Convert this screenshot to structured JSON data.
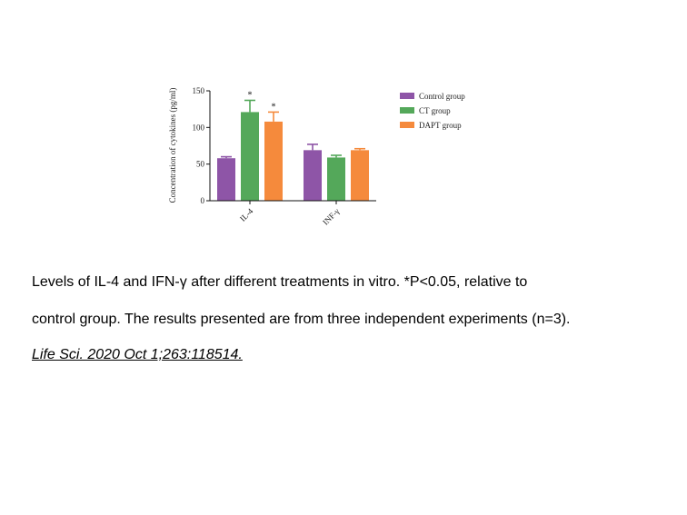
{
  "chart_data": {
    "type": "bar",
    "ylabel": "Concentration of cytokines (pg/ml)",
    "xlabel": "",
    "ylim": [
      0,
      150
    ],
    "yticks": [
      0,
      50,
      100,
      150
    ],
    "categories": [
      "IL-4",
      "INF-γ"
    ],
    "series": [
      {
        "name": "Control group",
        "color": "#8e55a7",
        "values": [
          58,
          69
        ],
        "errors": [
          2,
          8
        ],
        "significance": [
          "",
          ""
        ]
      },
      {
        "name": "CT group",
        "color": "#54a85a",
        "values": [
          121,
          59
        ],
        "errors": [
          16,
          3
        ],
        "significance": [
          "*",
          ""
        ]
      },
      {
        "name": "DAPT group",
        "color": "#f58a3c",
        "values": [
          108,
          69
        ],
        "errors": [
          13,
          2
        ],
        "significance": [
          "*",
          ""
        ]
      }
    ],
    "legend_position": "right",
    "grid": false
  },
  "caption": {
    "line1": "Levels of IL-4 and IFN-γ after different treatments in vitro. *P<0.05, relative to",
    "line2": "control group. The results presented are from three independent experiments (n=3).",
    "citation": "Life Sci. 2020 Oct 1;263:118514."
  }
}
